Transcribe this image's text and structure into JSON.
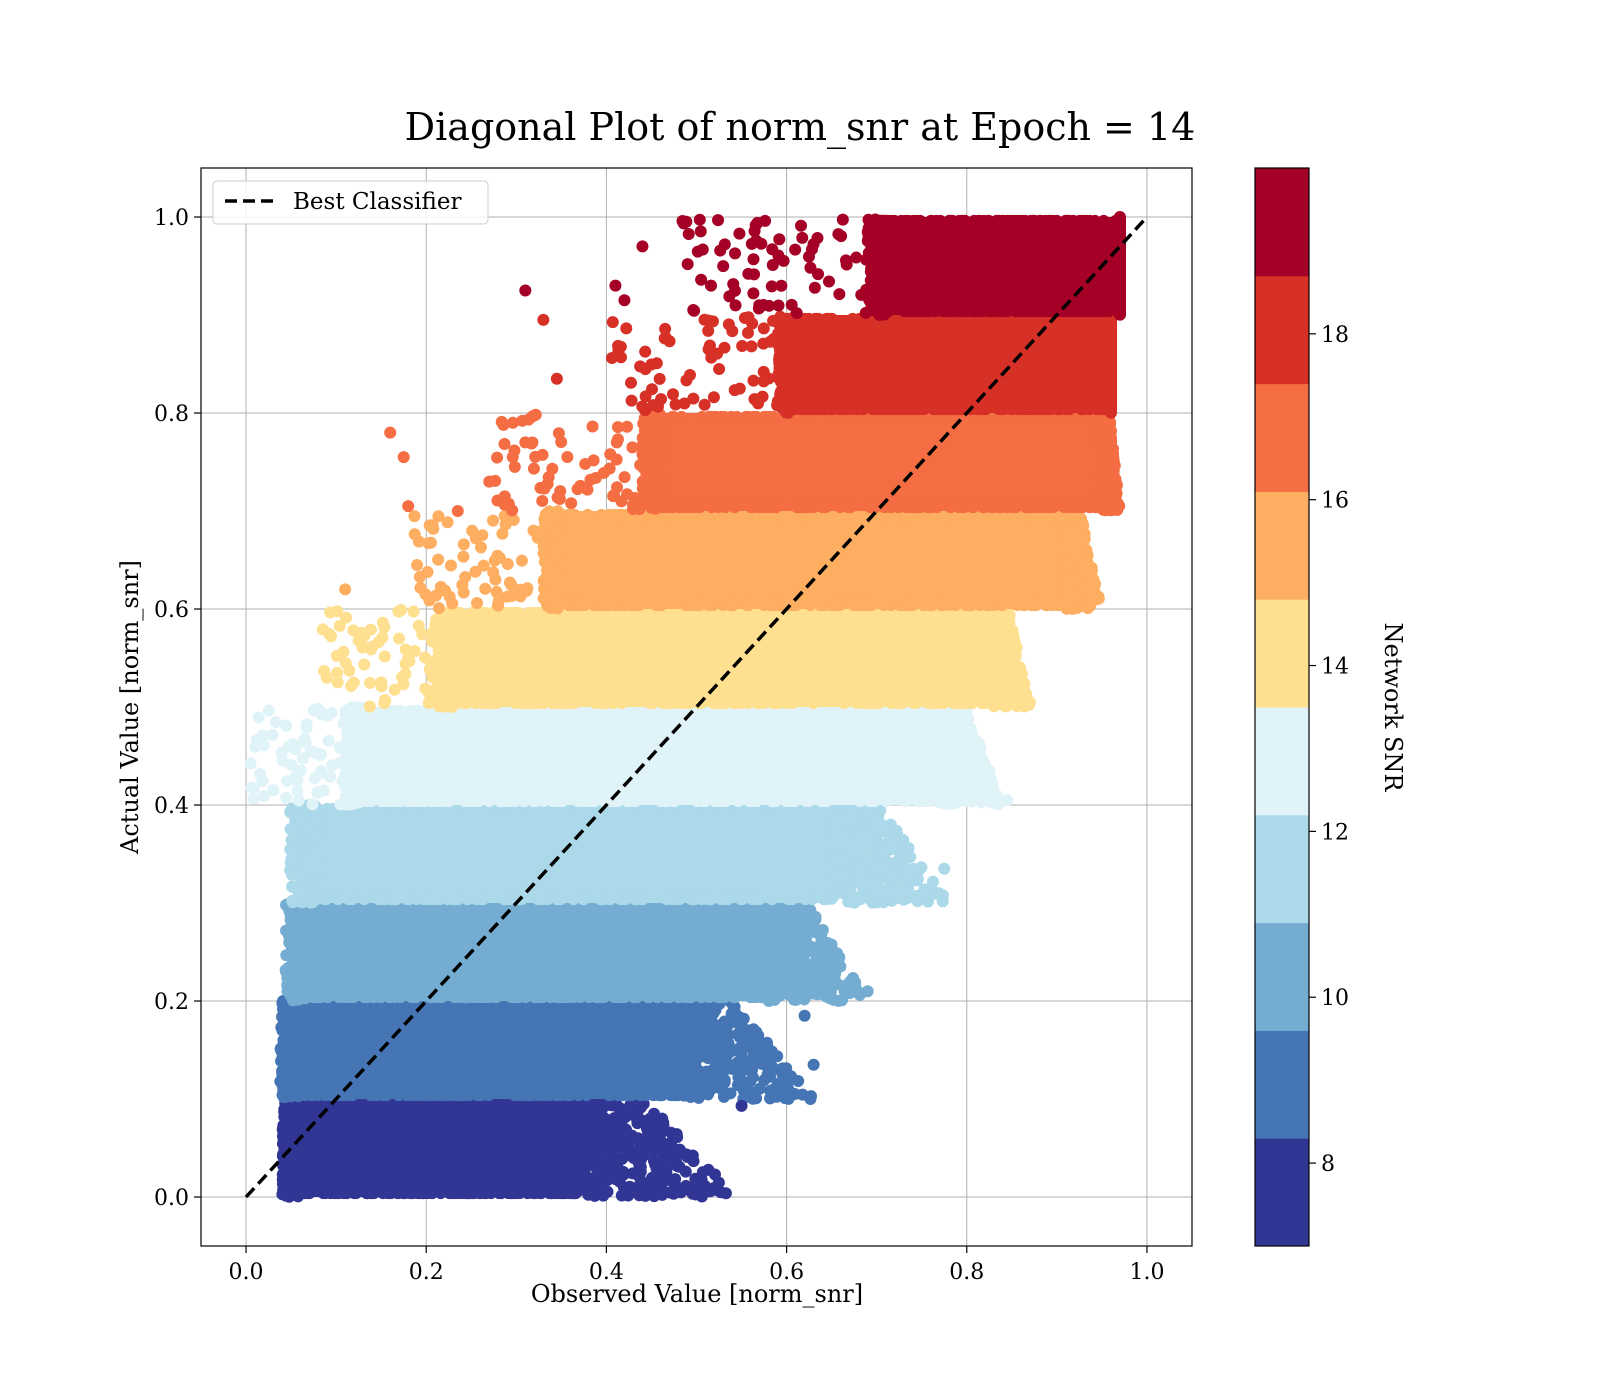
{
  "chart_data": {
    "type": "scatter",
    "title": "Diagonal Plot of norm_snr at Epoch = 14",
    "xlabel": "Observed Value [norm_snr]",
    "ylabel": "Actual Value [norm_snr]",
    "xlim": [
      -0.05,
      1.05
    ],
    "ylim": [
      -0.05,
      1.05
    ],
    "x_ticks": [
      0.0,
      0.2,
      0.4,
      0.6,
      0.8,
      1.0
    ],
    "x_tick_labels": [
      "0.0",
      "0.2",
      "0.4",
      "0.6",
      "0.8",
      "1.0"
    ],
    "y_ticks": [
      0.0,
      0.2,
      0.4,
      0.6,
      0.8,
      1.0
    ],
    "y_tick_labels": [
      "0.0",
      "0.2",
      "0.4",
      "0.6",
      "0.8",
      "1.0"
    ],
    "grid": true,
    "legend": {
      "placement": "upper-left",
      "entries": [
        "Best Classifier"
      ]
    },
    "reference_line": {
      "name": "Best Classifier",
      "style": "dashed",
      "color": "#000000",
      "x": [
        0.0,
        1.0
      ],
      "y": [
        0.0,
        1.0
      ]
    },
    "colorbar": {
      "label": "Network SNR",
      "range": [
        7,
        20
      ],
      "ticks": [
        8,
        10,
        12,
        14,
        16,
        18
      ],
      "tick_labels": [
        "8",
        "10",
        "12",
        "14",
        "16",
        "18"
      ],
      "colors": [
        "#313695",
        "#4575b4",
        "#74add1",
        "#abd9e9",
        "#e0f3f8",
        "#fee090",
        "#fdae61",
        "#f46d43",
        "#d73027",
        "#a50026"
      ]
    },
    "bands": [
      {
        "y_range": [
          0.0,
          0.1
        ],
        "dense_x": [
          0.05,
          0.37
        ],
        "scatter_x_max": 0.55,
        "color": "#313695"
      },
      {
        "y_range": [
          0.1,
          0.2
        ],
        "dense_x": [
          0.05,
          0.48
        ],
        "scatter_x_max": 0.63,
        "color": "#4575b4"
      },
      {
        "y_range": [
          0.2,
          0.3
        ],
        "dense_x": [
          0.06,
          0.58
        ],
        "scatter_x_max": 0.69,
        "color": "#74add1"
      },
      {
        "y_range": [
          0.3,
          0.4
        ],
        "dense_x": [
          0.07,
          0.65
        ],
        "scatter_x_max": 0.78,
        "color": "#abd9e9"
      },
      {
        "y_range": [
          0.4,
          0.5
        ],
        "dense_x": [
          0.12,
          0.77
        ],
        "scatter_x_max": 0.84,
        "color": "#e0f3f8"
      },
      {
        "y_range": [
          0.5,
          0.6
        ],
        "dense_x": [
          0.22,
          0.83
        ],
        "scatter_x_max": 0.87,
        "color": "#fee090"
      },
      {
        "y_range": [
          0.6,
          0.7
        ],
        "dense_x": [
          0.34,
          0.91
        ],
        "scatter_x_max": 0.95,
        "color": "#fdae61"
      },
      {
        "y_range": [
          0.7,
          0.8
        ],
        "dense_x": [
          0.45,
          0.95
        ],
        "scatter_x_max": 0.97,
        "color": "#f46d43"
      },
      {
        "y_range": [
          0.8,
          0.9
        ],
        "dense_x": [
          0.6,
          0.96
        ],
        "scatter_x_max": 0.96,
        "color": "#d73027"
      },
      {
        "y_range": [
          0.9,
          1.0
        ],
        "dense_x": [
          0.7,
          0.97
        ],
        "scatter_x_max": 0.97,
        "color": "#a50026"
      }
    ],
    "outliers": [
      {
        "x": 0.31,
        "y": 0.925
      },
      {
        "x": 0.33,
        "y": 0.895
      },
      {
        "x": 0.41,
        "y": 0.93
      },
      {
        "x": 0.44,
        "y": 0.97
      },
      {
        "x": 0.42,
        "y": 0.915
      },
      {
        "x": 0.16,
        "y": 0.78
      },
      {
        "x": 0.175,
        "y": 0.755
      },
      {
        "x": 0.31,
        "y": 0.77
      },
      {
        "x": 0.27,
        "y": 0.73
      },
      {
        "x": 0.18,
        "y": 0.705
      },
      {
        "x": 0.235,
        "y": 0.7
      },
      {
        "x": 0.775,
        "y": 0.335
      },
      {
        "x": 0.69,
        "y": 0.21
      },
      {
        "x": 0.62,
        "y": 0.185
      },
      {
        "x": 0.63,
        "y": 0.135
      },
      {
        "x": 0.55,
        "y": 0.093
      },
      {
        "x": 0.845,
        "y": 0.405
      },
      {
        "x": 0.87,
        "y": 0.505
      },
      {
        "x": 0.11,
        "y": 0.62
      },
      {
        "x": 0.345,
        "y": 0.835
      }
    ]
  }
}
